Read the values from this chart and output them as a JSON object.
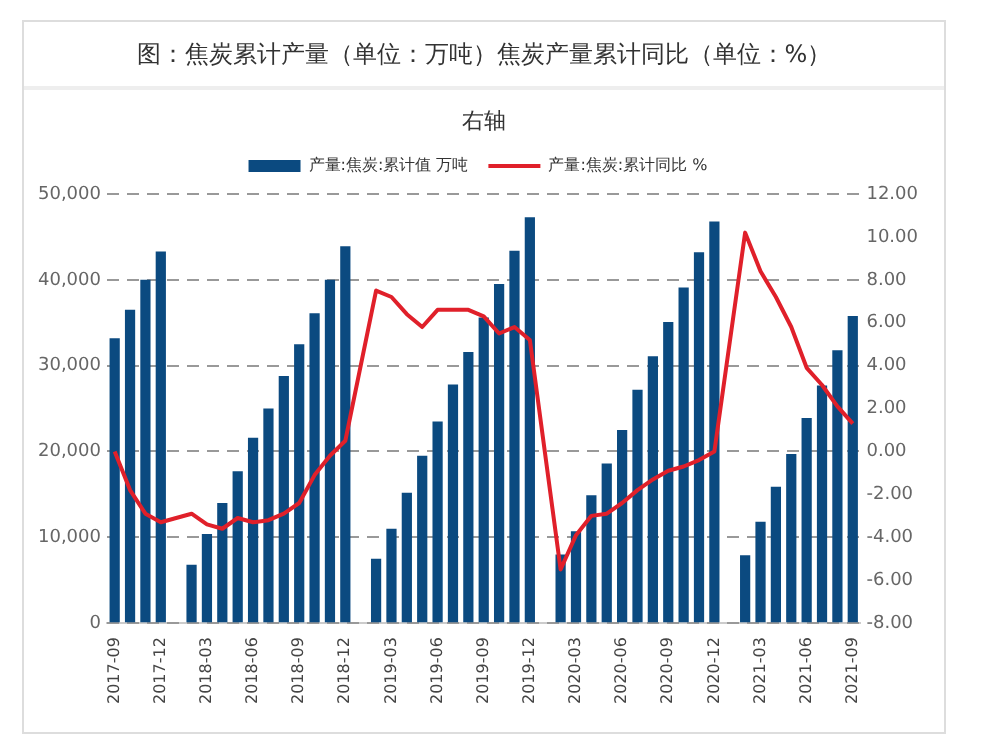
{
  "chart_data": {
    "type": "bar",
    "title": "图：焦炭累计产量（单位：万吨）焦炭产量累计同比（单位：%）",
    "subtitle": "右轴",
    "categories": [
      "2017-09",
      null,
      null,
      "2017-12",
      null,
      null,
      "2018-03",
      null,
      null,
      "2018-06",
      null,
      null,
      "2018-09",
      null,
      null,
      "2018-12",
      null,
      null,
      "2019-03",
      null,
      null,
      "2019-06",
      null,
      null,
      "2019-09",
      null,
      null,
      "2019-12",
      null,
      null,
      "2020-03",
      null,
      null,
      "2020-06",
      null,
      null,
      "2020-09",
      null,
      null,
      "2020-12",
      null,
      null,
      "2021-03",
      null,
      null,
      "2021-06",
      null,
      null,
      "2021-09"
    ],
    "series": [
      {
        "name": "产量:焦炭:累计值 万吨",
        "color": "#0b4a80",
        "values": [
          33200,
          36500,
          40000,
          43300,
          null,
          6800,
          10400,
          14000,
          17700,
          21600,
          25000,
          28800,
          32500,
          36100,
          40000,
          43900,
          null,
          7500,
          11000,
          15200,
          19500,
          23500,
          27800,
          31600,
          35600,
          39500,
          43400,
          47300,
          null,
          8000,
          10700,
          14900,
          18600,
          22500,
          27200,
          31100,
          35100,
          39100,
          43200,
          46800,
          null,
          7900,
          11800,
          15900,
          19700,
          23900,
          27700,
          31800,
          35800
        ]
      },
      {
        "name": "产量:焦炭:累计同比 %",
        "type": "line",
        "axis": "y2",
        "color": "#e0202a",
        "values": [
          0.0,
          -1.8,
          -2.9,
          -3.3,
          null,
          -2.9,
          -3.4,
          -3.6,
          -3.1,
          -3.3,
          -3.2,
          -2.9,
          -2.4,
          -1.1,
          -0.2,
          0.5,
          null,
          7.5,
          7.2,
          6.4,
          5.8,
          6.6,
          6.6,
          6.6,
          6.3,
          5.5,
          5.8,
          5.2,
          null,
          -5.5,
          -3.9,
          -3.0,
          -2.9,
          -2.4,
          -1.8,
          -1.3,
          -0.9,
          -0.7,
          -0.4,
          0.0,
          null,
          10.2,
          8.4,
          7.2,
          5.8,
          3.9,
          3.1,
          2.1,
          1.3
        ]
      }
    ],
    "ylim": [
      0,
      50000
    ],
    "yticks": [
      {
        "value": 0,
        "label": "0"
      },
      {
        "value": 10000,
        "label": "10,000"
      },
      {
        "value": 20000,
        "label": "20,000"
      },
      {
        "value": 30000,
        "label": "30,000"
      },
      {
        "value": 40000,
        "label": "40,000"
      },
      {
        "value": 50000,
        "label": "50,000"
      }
    ],
    "y2lim": [
      -8,
      12
    ],
    "y2ticks": [
      {
        "value": -8,
        "label": "-8.00"
      },
      {
        "value": -6,
        "label": "-6.00"
      },
      {
        "value": -4,
        "label": "-4.00"
      },
      {
        "value": -2,
        "label": "-2.00"
      },
      {
        "value": 0,
        "label": "0.00"
      },
      {
        "value": 2,
        "label": "2.00"
      },
      {
        "value": 4,
        "label": "4.00"
      },
      {
        "value": 6,
        "label": "6.00"
      },
      {
        "value": 8,
        "label": "8.00"
      },
      {
        "value": 10,
        "label": "10.00"
      },
      {
        "value": 12,
        "label": "12.00"
      }
    ],
    "grid": "y",
    "legend": "top",
    "marker": "none",
    "line_style": "solid"
  }
}
